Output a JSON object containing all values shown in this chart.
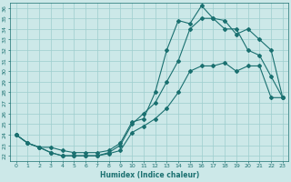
{
  "xlabel": "Humidex (Indice chaleur)",
  "bg_color": "#cce8e8",
  "grid_color": "#9ecece",
  "line_color": "#1a7070",
  "xlim": [
    -0.5,
    23.5
  ],
  "ylim": [
    21.5,
    36.5
  ],
  "yticks": [
    22,
    23,
    24,
    25,
    26,
    27,
    28,
    29,
    30,
    31,
    32,
    33,
    34,
    35,
    36
  ],
  "xticks": [
    0,
    1,
    2,
    3,
    4,
    5,
    6,
    7,
    8,
    9,
    10,
    11,
    12,
    13,
    14,
    15,
    16,
    17,
    18,
    19,
    20,
    21,
    22,
    23
  ],
  "line1_x": [
    0,
    1,
    2,
    3,
    4,
    5,
    6,
    7,
    8,
    9,
    10,
    11,
    12,
    13,
    14,
    15,
    16,
    17,
    18,
    19,
    20,
    21,
    22,
    23
  ],
  "line1_y": [
    24.0,
    23.2,
    22.8,
    22.3,
    22.0,
    22.0,
    22.0,
    22.0,
    22.2,
    22.5,
    24.2,
    24.8,
    25.5,
    26.5,
    28.0,
    30.0,
    30.5,
    30.5,
    30.8,
    30.0,
    30.5,
    30.5,
    27.5,
    27.5
  ],
  "line2_x": [
    0,
    1,
    2,
    3,
    4,
    5,
    6,
    7,
    8,
    9,
    10,
    11,
    12,
    13,
    14,
    15,
    16,
    17,
    18,
    19,
    20,
    21,
    22,
    23
  ],
  "line2_y": [
    24.0,
    23.2,
    22.8,
    22.8,
    22.5,
    22.3,
    22.3,
    22.3,
    22.5,
    23.2,
    25.2,
    25.5,
    28.0,
    32.0,
    34.8,
    34.5,
    36.2,
    35.0,
    34.0,
    34.0,
    32.0,
    31.5,
    29.5,
    27.5
  ],
  "line3_x": [
    0,
    1,
    2,
    3,
    4,
    5,
    6,
    7,
    8,
    9,
    10,
    11,
    12,
    13,
    14,
    15,
    16,
    17,
    18,
    19,
    20,
    21,
    22,
    23
  ],
  "line3_y": [
    24.0,
    23.2,
    22.8,
    22.3,
    22.0,
    22.0,
    22.0,
    22.0,
    22.3,
    23.0,
    25.0,
    26.0,
    27.0,
    29.0,
    31.0,
    34.0,
    35.0,
    35.0,
    34.8,
    33.5,
    34.0,
    33.0,
    32.0,
    27.5
  ]
}
